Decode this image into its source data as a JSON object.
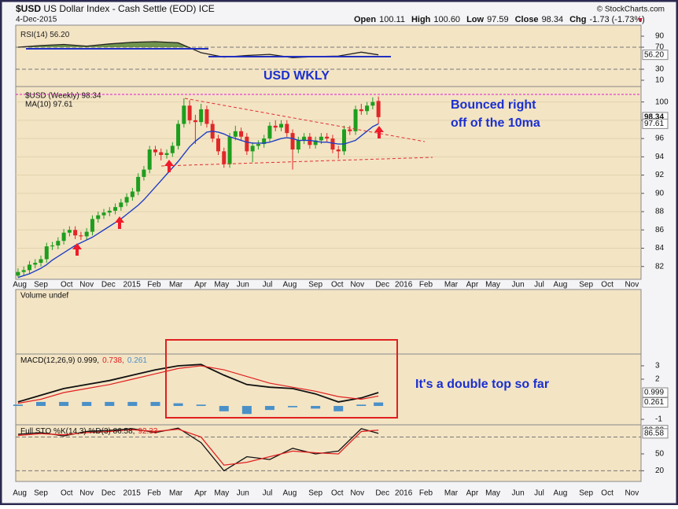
{
  "chart_data": [
    {
      "type": "candlestick",
      "symbol": "$USD",
      "title": "US Dollar Index - Cash Settle (EOD)",
      "exchange": "ICE",
      "date": "4-Dec-2015",
      "quote": [
        {
          "label": "Open",
          "value": "100.11"
        },
        {
          "label": "High",
          "value": "100.60"
        },
        {
          "label": "Low",
          "value": "97.59"
        },
        {
          "label": "Close",
          "value": "98.34"
        },
        {
          "label": "Chg",
          "value": "-1.73 (-1.73%)"
        }
      ],
      "watermark": "© StockCharts.com",
      "annotations": [
        "USD WKLY",
        "Bounced right",
        "off of the 10ma"
      ],
      "x": [
        1,
        2,
        3,
        4,
        5,
        6,
        7,
        8,
        9,
        10,
        11,
        12,
        13,
        14,
        15,
        16,
        17,
        18,
        19,
        20,
        21,
        22,
        23,
        24,
        25,
        26,
        27,
        28,
        29,
        30,
        31,
        32,
        33,
        34,
        35,
        36,
        37,
        38,
        39,
        40,
        41,
        42,
        43,
        44,
        45,
        46,
        47,
        48,
        49,
        50,
        51,
        52,
        53,
        54,
        55,
        56,
        57,
        58,
        59,
        60,
        61,
        62,
        63,
        64
      ],
      "series": [
        {
          "name": "$USD (Weekly) 98.34",
          "color": "#1e9e1e",
          "down_color": "#e02828",
          "open": [
            81.0,
            81.4,
            81.6,
            82.2,
            82.4,
            82.8,
            84.2,
            84.3,
            84.8,
            85.7,
            86.0,
            85.4,
            85.3,
            85.8,
            87.2,
            87.6,
            87.9,
            88.1,
            88.5,
            89.0,
            89.6,
            90.2,
            91.8,
            92.6,
            94.8,
            94.5,
            94.2,
            94.4,
            95.2,
            97.6,
            99.6,
            98.0,
            97.8,
            99.2,
            97.6,
            96.0,
            94.6,
            93.2,
            96.2,
            96.8,
            96.2,
            94.6,
            95.2,
            95.4,
            96.0,
            97.4,
            97.2,
            97.6,
            96.6,
            94.8,
            95.8,
            96.2,
            95.3,
            95.8,
            96.2,
            96.0,
            94.8,
            94.6,
            97.0,
            96.8,
            99.2,
            99.0,
            99.6,
            100.11
          ],
          "high": [
            81.8,
            82.0,
            82.6,
            82.8,
            83.2,
            84.6,
            84.7,
            85.2,
            86.1,
            86.4,
            86.4,
            85.8,
            86.2,
            87.6,
            88.0,
            88.3,
            88.5,
            88.9,
            89.4,
            90.0,
            90.6,
            92.2,
            93.0,
            95.2,
            95.2,
            94.9,
            94.8,
            95.6,
            98.0,
            100.4,
            100.2,
            98.6,
            99.8,
            99.6,
            98.0,
            96.4,
            95.0,
            96.6,
            97.4,
            97.2,
            96.6,
            95.6,
            95.8,
            96.4,
            97.8,
            98.0,
            98.0,
            98.0,
            97.0,
            96.2,
            96.6,
            96.6,
            96.2,
            96.6,
            96.6,
            96.4,
            95.2,
            97.4,
            97.4,
            99.6,
            99.8,
            100.0,
            100.5,
            100.6
          ],
          "low": [
            80.8,
            81.0,
            81.2,
            81.8,
            82.0,
            82.4,
            83.8,
            83.9,
            84.4,
            85.3,
            85.0,
            84.9,
            84.9,
            85.4,
            86.8,
            87.2,
            87.5,
            87.7,
            88.1,
            88.6,
            89.2,
            89.8,
            91.4,
            92.2,
            94.1,
            93.6,
            93.8,
            94.0,
            94.8,
            97.2,
            97.6,
            95.4,
            97.4,
            97.2,
            95.6,
            94.2,
            92.8,
            92.8,
            95.8,
            95.8,
            94.2,
            93.4,
            94.8,
            95.0,
            95.6,
            96.8,
            96.8,
            96.2,
            92.6,
            94.4,
            95.4,
            94.9,
            94.9,
            95.4,
            95.6,
            94.4,
            93.8,
            94.2,
            96.4,
            96.4,
            98.6,
            98.6,
            99.2,
            97.59
          ],
          "close": [
            81.4,
            81.6,
            82.2,
            82.4,
            82.8,
            84.2,
            84.3,
            84.8,
            85.7,
            86.0,
            85.4,
            85.3,
            85.8,
            87.2,
            87.6,
            87.9,
            88.1,
            88.5,
            89.0,
            89.6,
            90.2,
            91.8,
            92.6,
            94.8,
            94.5,
            94.2,
            94.4,
            95.2,
            97.6,
            99.6,
            98.0,
            97.8,
            99.2,
            97.6,
            96.0,
            94.6,
            93.2,
            96.2,
            96.8,
            96.2,
            94.6,
            95.2,
            95.4,
            96.0,
            97.4,
            97.2,
            97.6,
            96.6,
            94.8,
            95.8,
            96.2,
            95.3,
            95.8,
            96.2,
            96.0,
            94.8,
            94.6,
            97.0,
            96.8,
            99.2,
            99.0,
            99.6,
            100.0,
            98.34
          ]
        },
        {
          "name": "MA(10) 97.61",
          "color": "#1f3fc4",
          "values": [
            80.8,
            81.0,
            81.2,
            81.5,
            81.8,
            82.2,
            82.7,
            83.1,
            83.5,
            83.9,
            84.3,
            84.6,
            84.9,
            85.2,
            85.6,
            86.0,
            86.4,
            86.8,
            87.2,
            87.7,
            88.2,
            88.7,
            89.3,
            90.0,
            90.7,
            91.4,
            92.1,
            92.8,
            93.5,
            94.3,
            95.1,
            95.7,
            96.2,
            96.7,
            96.8,
            96.7,
            96.5,
            96.2,
            96.0,
            95.8,
            95.6,
            95.5,
            95.5,
            95.5,
            95.6,
            95.8,
            96.0,
            96.1,
            96.0,
            95.8,
            95.8,
            95.8,
            95.7,
            95.6,
            95.6,
            95.5,
            95.4,
            95.4,
            95.6,
            95.8,
            96.3,
            96.8,
            97.3,
            97.61
          ]
        }
      ],
      "last_labels": [
        98.34,
        97.61
      ],
      "xlim": [
        0.6,
        109.9
      ],
      "ylim": [
        80.6,
        101.0
      ],
      "yticks": [
        82,
        84,
        86,
        88,
        90,
        92,
        94,
        96,
        98,
        100
      ],
      "grid": true,
      "xticks": [
        {
          "value": 1.3,
          "label": "Aug"
        },
        {
          "value": 5.0,
          "label": "Sep"
        },
        {
          "value": 9.5,
          "label": "Oct"
        },
        {
          "value": 13.0,
          "label": "Nov"
        },
        {
          "value": 16.8,
          "label": "Dec"
        },
        {
          "value": 20.9,
          "label": "2015"
        },
        {
          "value": 24.8,
          "label": "Feb"
        },
        {
          "value": 28.6,
          "label": "Mar"
        },
        {
          "value": 32.9,
          "label": "Apr"
        },
        {
          "value": 36.6,
          "label": "May"
        },
        {
          "value": 40.3,
          "label": "Jun"
        },
        {
          "value": 44.6,
          "label": "Jul"
        },
        {
          "value": 48.5,
          "label": "Aug"
        },
        {
          "value": 53.0,
          "label": "Sep"
        },
        {
          "value": 56.8,
          "label": "Oct"
        },
        {
          "value": 60.3,
          "label": "Nov"
        },
        {
          "value": 64.7,
          "label": "Dec"
        },
        {
          "value": 68.4,
          "label": "2016"
        },
        {
          "value": 72.3,
          "label": "Feb"
        },
        {
          "value": 76.7,
          "label": "Mar"
        },
        {
          "value": 80.4,
          "label": "Apr"
        },
        {
          "value": 84.0,
          "label": "May"
        },
        {
          "value": 88.4,
          "label": "Jun"
        },
        {
          "value": 92.1,
          "label": "Jul"
        },
        {
          "value": 95.8,
          "label": "Aug"
        },
        {
          "value": 100.3,
          "label": "Sep"
        },
        {
          "value": 104.0,
          "label": "Oct"
        },
        {
          "value": 108.3,
          "label": "Nov"
        }
      ]
    },
    {
      "type": "line",
      "x": [
        1,
        5,
        9,
        13,
        17,
        21,
        25,
        29,
        33,
        37,
        41,
        45,
        49,
        53,
        57,
        61,
        64
      ],
      "series": [
        {
          "name": "RSI(14) 56.20",
          "color": "#222222",
          "fill_color": "#4f7f2f",
          "fill_above": 70,
          "values": [
            70,
            73,
            75,
            72,
            76,
            79,
            80,
            78,
            60,
            52,
            55,
            57,
            51,
            53,
            54,
            61,
            56.2
          ]
        }
      ],
      "last_labels": [
        {
          "value": 56.2,
          "label": "56.20"
        }
      ],
      "ylim": [
        -1.4,
        104.3
      ],
      "yticks": [
        10,
        30,
        70,
        90
      ],
      "ref_lines": [
        70,
        30
      ]
    },
    {
      "type": "volume",
      "title": "Volume undef"
    },
    {
      "type": "macd",
      "x": [
        1,
        5,
        9,
        13,
        17,
        21,
        25,
        29,
        33,
        37,
        41,
        45,
        49,
        53,
        57,
        61,
        64
      ],
      "series": [
        {
          "name": "MACD(12,26,9) 0.999,",
          "color": "#111111",
          "values": [
            0.3,
            0.8,
            1.3,
            1.6,
            1.9,
            2.3,
            2.7,
            3.0,
            3.1,
            2.3,
            1.6,
            1.4,
            1.3,
            0.9,
            0.3,
            0.6,
            0.999
          ]
        },
        {
          "name": "0.738,",
          "color": "#e02020",
          "values": [
            0.2,
            0.5,
            1.0,
            1.3,
            1.6,
            2.0,
            2.4,
            2.8,
            3.0,
            2.7,
            2.2,
            1.7,
            1.4,
            1.1,
            0.7,
            0.5,
            0.738
          ]
        },
        {
          "name": "0.261",
          "color": "#4a90c8",
          "kind": "histogram",
          "values": [
            0.1,
            0.3,
            0.3,
            0.3,
            0.3,
            0.3,
            0.3,
            0.2,
            0.1,
            -0.4,
            -0.6,
            -0.3,
            -0.1,
            -0.2,
            -0.4,
            0.1,
            0.261
          ]
        }
      ],
      "annotations": [
        "It's a double top so far"
      ],
      "last_labels": [
        0.999,
        0.261
      ],
      "ylim": [
        -1.41,
        3.88
      ],
      "yticks": [
        -1,
        2,
        3
      ]
    },
    {
      "type": "line",
      "x": [
        1,
        5,
        9,
        13,
        17,
        21,
        25,
        29,
        33,
        37,
        41,
        45,
        49,
        53,
        57,
        61,
        64
      ],
      "series": [
        {
          "name": "Full STO %K(14,3) %D(3) 86.58,",
          "color": "#111111",
          "values": [
            85,
            88,
            82,
            90,
            92,
            95,
            88,
            96,
            70,
            20,
            45,
            40,
            60,
            50,
            55,
            95,
            86.58
          ]
        },
        {
          "name": "92.33",
          "color": "#e02020",
          "values": [
            83,
            86,
            84,
            88,
            90,
            93,
            90,
            94,
            80,
            30,
            35,
            45,
            55,
            52,
            50,
            90,
            92.33
          ]
        }
      ],
      "last_labels": [
        92.33,
        86.58
      ],
      "ylim": [
        0.9,
        101.8
      ],
      "yticks": [
        20,
        50
      ],
      "ref_lines": [
        80,
        20
      ]
    }
  ]
}
